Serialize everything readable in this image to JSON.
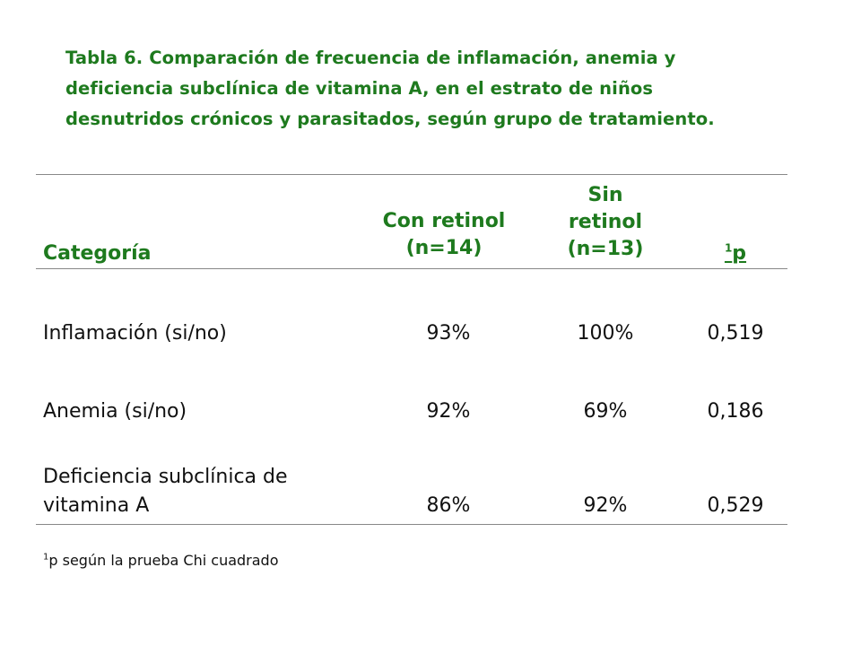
{
  "title": {
    "line1": "Tabla 6. Comparación de frecuencia de inflamación, anemia y",
    "line2": "deficiencia subclínica de vitamina A,  en el estrato de niños",
    "line3": "desnutridos crónicos y parasitados, según grupo de tratamiento."
  },
  "table": {
    "headers": {
      "categoria": "Categoría",
      "con_retinol_1": "Con retinol",
      "con_retinol_2": "(n=14)",
      "sin_retinol_1": "Sin",
      "sin_retinol_2": "retinol",
      "sin_retinol_3": "(n=13)",
      "p_sup": "1",
      "p": "p"
    },
    "rows": [
      {
        "categoria_1": "Inflamación (si/no)",
        "categoria_2": "",
        "con_retinol": "93%",
        "sin_retinol": "100%",
        "p": "0,519"
      },
      {
        "categoria_1": "Anemia (si/no)",
        "categoria_2": "",
        "con_retinol": "92%",
        "sin_retinol": "69%",
        "p": "0,186"
      },
      {
        "categoria_1": "Deficiencia subclínica de",
        "categoria_2": "vitamina A",
        "con_retinol": "86%",
        "sin_retinol": "92%",
        "p": "0,529"
      }
    ]
  },
  "footnote": {
    "sup": "1",
    "text": "p según la prueba Chi cuadrado"
  },
  "colors": {
    "accent_green": "#1e7a1e",
    "text": "#111111",
    "rule": "#888888"
  }
}
